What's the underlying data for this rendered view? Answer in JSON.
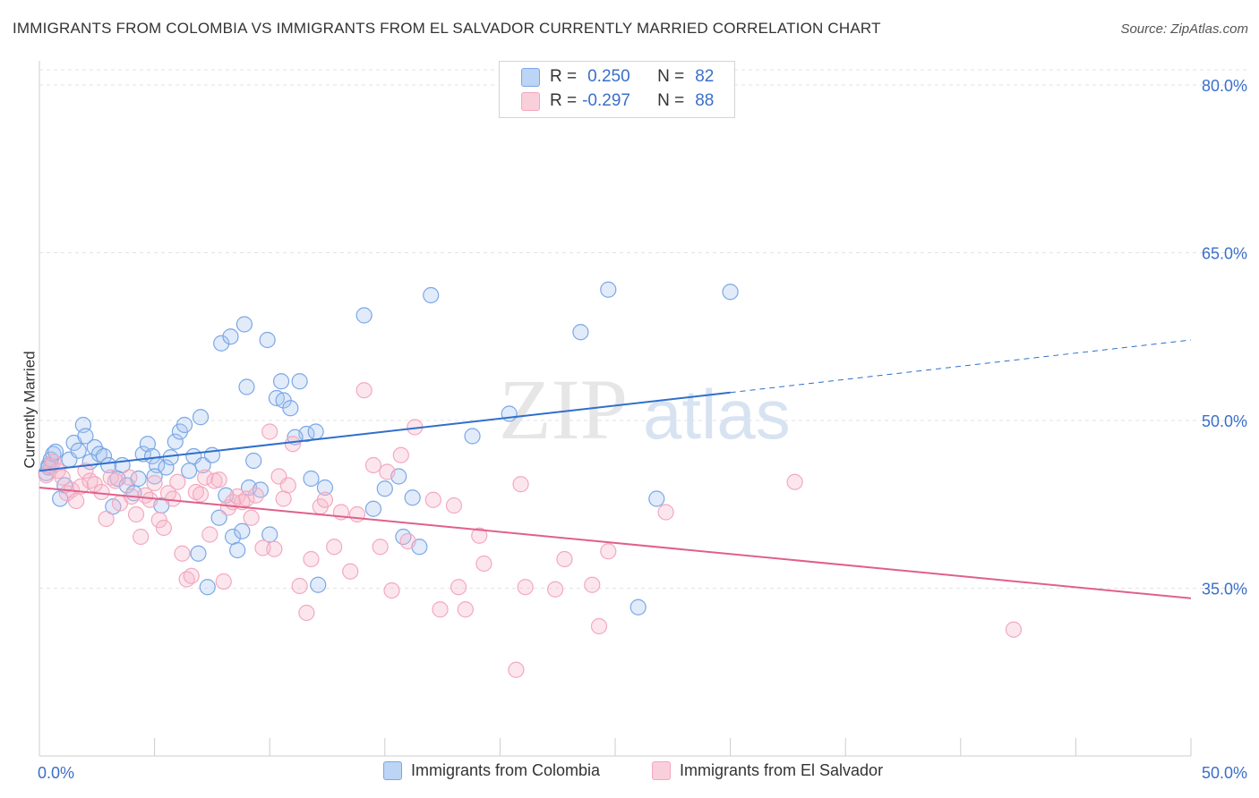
{
  "title": "IMMIGRANTS FROM COLOMBIA VS IMMIGRANTS FROM EL SALVADOR CURRENTLY MARRIED CORRELATION CHART",
  "source": "Source: ZipAtlas.com",
  "watermark": {
    "zip": "ZIP",
    "atlas": "atlas"
  },
  "legend_stats": [
    {
      "r_label": "R =",
      "r_value": "0.250",
      "n_label": "N =",
      "n_value": "82",
      "color": "#a9c6f0"
    },
    {
      "r_label": "R =",
      "r_value": "-0.297",
      "n_label": "N =",
      "n_value": "88",
      "color": "#f5b7ca"
    }
  ],
  "chart_data": {
    "type": "scatter",
    "ylabel": "Currently Married",
    "xlim": [
      0,
      50
    ],
    "ylim": [
      20,
      82
    ],
    "x_tick_labels": [
      "0.0%",
      "50.0%"
    ],
    "y_ticks": [
      35,
      50,
      65,
      80
    ],
    "y_tick_labels": [
      "35.0%",
      "50.0%",
      "65.0%",
      "80.0%"
    ],
    "grid": true,
    "series": [
      {
        "name": "Immigrants from Colombia",
        "color": "#7aa7e6",
        "line_color": "#2f6fcc",
        "trend": {
          "x0": 0,
          "y0": 45.5,
          "x1": 30,
          "y1": 52.5,
          "dash_x1": 50,
          "dash_y1": 57.2
        },
        "points": [
          [
            0.3,
            45.3
          ],
          [
            0.4,
            46.0
          ],
          [
            0.5,
            46.5
          ],
          [
            0.6,
            47.0
          ],
          [
            0.4,
            45.8
          ],
          [
            0.7,
            47.2
          ],
          [
            0.9,
            43.0
          ],
          [
            1.1,
            44.2
          ],
          [
            1.3,
            46.5
          ],
          [
            1.5,
            48.0
          ],
          [
            1.7,
            47.3
          ],
          [
            1.9,
            49.6
          ],
          [
            2.0,
            48.6
          ],
          [
            2.2,
            46.3
          ],
          [
            2.4,
            47.6
          ],
          [
            2.6,
            47.0
          ],
          [
            2.8,
            46.8
          ],
          [
            3.0,
            46.0
          ],
          [
            3.2,
            42.3
          ],
          [
            3.4,
            44.8
          ],
          [
            3.6,
            46.0
          ],
          [
            3.8,
            44.2
          ],
          [
            4.1,
            43.5
          ],
          [
            4.3,
            44.8
          ],
          [
            4.5,
            47.0
          ],
          [
            4.7,
            47.9
          ],
          [
            4.9,
            46.8
          ],
          [
            5.1,
            46.0
          ],
          [
            5.3,
            42.4
          ],
          [
            5.5,
            45.8
          ],
          [
            5.7,
            46.7
          ],
          [
            5.9,
            48.1
          ],
          [
            6.1,
            49.0
          ],
          [
            6.3,
            49.6
          ],
          [
            6.5,
            45.5
          ],
          [
            6.7,
            46.8
          ],
          [
            6.9,
            38.1
          ],
          [
            7.0,
            50.3
          ],
          [
            7.1,
            46.0
          ],
          [
            7.5,
            46.9
          ],
          [
            7.3,
            35.1
          ],
          [
            7.8,
            41.3
          ],
          [
            8.1,
            43.3
          ],
          [
            8.4,
            39.6
          ],
          [
            8.6,
            38.4
          ],
          [
            8.8,
            40.1
          ],
          [
            7.9,
            56.9
          ],
          [
            8.3,
            57.5
          ],
          [
            8.9,
            58.6
          ],
          [
            9.1,
            44.0
          ],
          [
            9.3,
            46.4
          ],
          [
            9.6,
            43.8
          ],
          [
            9.9,
            57.2
          ],
          [
            10.0,
            39.8
          ],
          [
            10.3,
            52.0
          ],
          [
            10.6,
            51.8
          ],
          [
            9.0,
            53.0
          ],
          [
            10.9,
            51.1
          ],
          [
            11.3,
            53.5
          ],
          [
            11.6,
            48.8
          ],
          [
            11.8,
            44.8
          ],
          [
            12.1,
            35.3
          ],
          [
            12.4,
            44.0
          ],
          [
            10.5,
            53.5
          ],
          [
            11.1,
            48.5
          ],
          [
            12.0,
            49.0
          ],
          [
            14.1,
            59.4
          ],
          [
            14.5,
            42.1
          ],
          [
            15.0,
            43.9
          ],
          [
            15.6,
            45.0
          ],
          [
            15.8,
            39.6
          ],
          [
            16.2,
            43.1
          ],
          [
            16.5,
            38.7
          ],
          [
            17.0,
            61.2
          ],
          [
            18.8,
            48.6
          ],
          [
            20.4,
            50.6
          ],
          [
            23.5,
            57.9
          ],
          [
            24.7,
            61.7
          ],
          [
            26.0,
            33.3
          ],
          [
            26.8,
            43.0
          ],
          [
            30.0,
            61.5
          ],
          [
            5.0,
            45.0
          ]
        ]
      },
      {
        "name": "Immigrants from El Salvador",
        "color": "#f3a8be",
        "line_color": "#e0608a",
        "trend": {
          "x0": 0,
          "y0": 44.0,
          "x1": 50,
          "y1": 34.1
        },
        "points": [
          [
            0.3,
            45.1
          ],
          [
            0.5,
            45.9
          ],
          [
            0.6,
            46.3
          ],
          [
            0.8,
            45.5
          ],
          [
            1.0,
            44.9
          ],
          [
            1.2,
            43.5
          ],
          [
            1.4,
            43.8
          ],
          [
            1.6,
            42.8
          ],
          [
            1.8,
            44.1
          ],
          [
            2.0,
            45.5
          ],
          [
            2.2,
            44.6
          ],
          [
            2.4,
            44.3
          ],
          [
            2.7,
            43.6
          ],
          [
            2.9,
            41.2
          ],
          [
            3.1,
            44.9
          ],
          [
            3.3,
            44.6
          ],
          [
            3.5,
            42.6
          ],
          [
            3.9,
            44.9
          ],
          [
            4.0,
            43.2
          ],
          [
            4.2,
            41.6
          ],
          [
            4.4,
            39.6
          ],
          [
            4.6,
            43.3
          ],
          [
            4.8,
            42.9
          ],
          [
            5.0,
            44.4
          ],
          [
            5.2,
            41.1
          ],
          [
            5.4,
            40.4
          ],
          [
            5.6,
            43.5
          ],
          [
            5.8,
            43.0
          ],
          [
            6.0,
            44.5
          ],
          [
            6.2,
            38.1
          ],
          [
            6.4,
            35.8
          ],
          [
            6.6,
            36.1
          ],
          [
            6.8,
            43.6
          ],
          [
            7.0,
            43.4
          ],
          [
            7.2,
            44.9
          ],
          [
            7.4,
            39.8
          ],
          [
            7.6,
            44.6
          ],
          [
            7.8,
            44.7
          ],
          [
            8.0,
            35.6
          ],
          [
            8.2,
            42.2
          ],
          [
            8.4,
            42.7
          ],
          [
            8.6,
            43.2
          ],
          [
            8.8,
            42.7
          ],
          [
            9.0,
            43.0
          ],
          [
            9.2,
            41.3
          ],
          [
            9.4,
            43.3
          ],
          [
            9.7,
            38.6
          ],
          [
            10.0,
            49.0
          ],
          [
            10.2,
            38.5
          ],
          [
            10.4,
            45.0
          ],
          [
            10.6,
            43.0
          ],
          [
            10.8,
            44.2
          ],
          [
            11.0,
            47.9
          ],
          [
            11.3,
            35.2
          ],
          [
            11.6,
            32.8
          ],
          [
            11.8,
            37.6
          ],
          [
            12.2,
            42.3
          ],
          [
            12.4,
            42.9
          ],
          [
            12.8,
            38.7
          ],
          [
            13.1,
            41.8
          ],
          [
            13.5,
            36.5
          ],
          [
            13.8,
            41.6
          ],
          [
            14.1,
            52.7
          ],
          [
            14.5,
            46.0
          ],
          [
            14.8,
            38.7
          ],
          [
            15.1,
            45.4
          ],
          [
            15.3,
            34.8
          ],
          [
            15.7,
            46.9
          ],
          [
            16.0,
            39.2
          ],
          [
            16.3,
            49.4
          ],
          [
            17.1,
            42.9
          ],
          [
            17.4,
            33.1
          ],
          [
            18.0,
            42.4
          ],
          [
            18.2,
            35.1
          ],
          [
            18.5,
            33.1
          ],
          [
            19.1,
            39.7
          ],
          [
            19.3,
            37.2
          ],
          [
            20.7,
            27.7
          ],
          [
            20.9,
            44.3
          ],
          [
            21.1,
            35.1
          ],
          [
            22.4,
            34.9
          ],
          [
            22.8,
            37.6
          ],
          [
            24.0,
            35.3
          ],
          [
            24.3,
            31.6
          ],
          [
            24.7,
            38.3
          ],
          [
            27.2,
            41.8
          ],
          [
            32.8,
            44.5
          ],
          [
            42.3,
            31.3
          ]
        ]
      }
    ]
  },
  "bottom_legend": [
    {
      "label": "Immigrants from Colombia",
      "color": "#a9c6f0"
    },
    {
      "label": "Immigrants from El Salvador",
      "color": "#f5b7ca"
    }
  ]
}
